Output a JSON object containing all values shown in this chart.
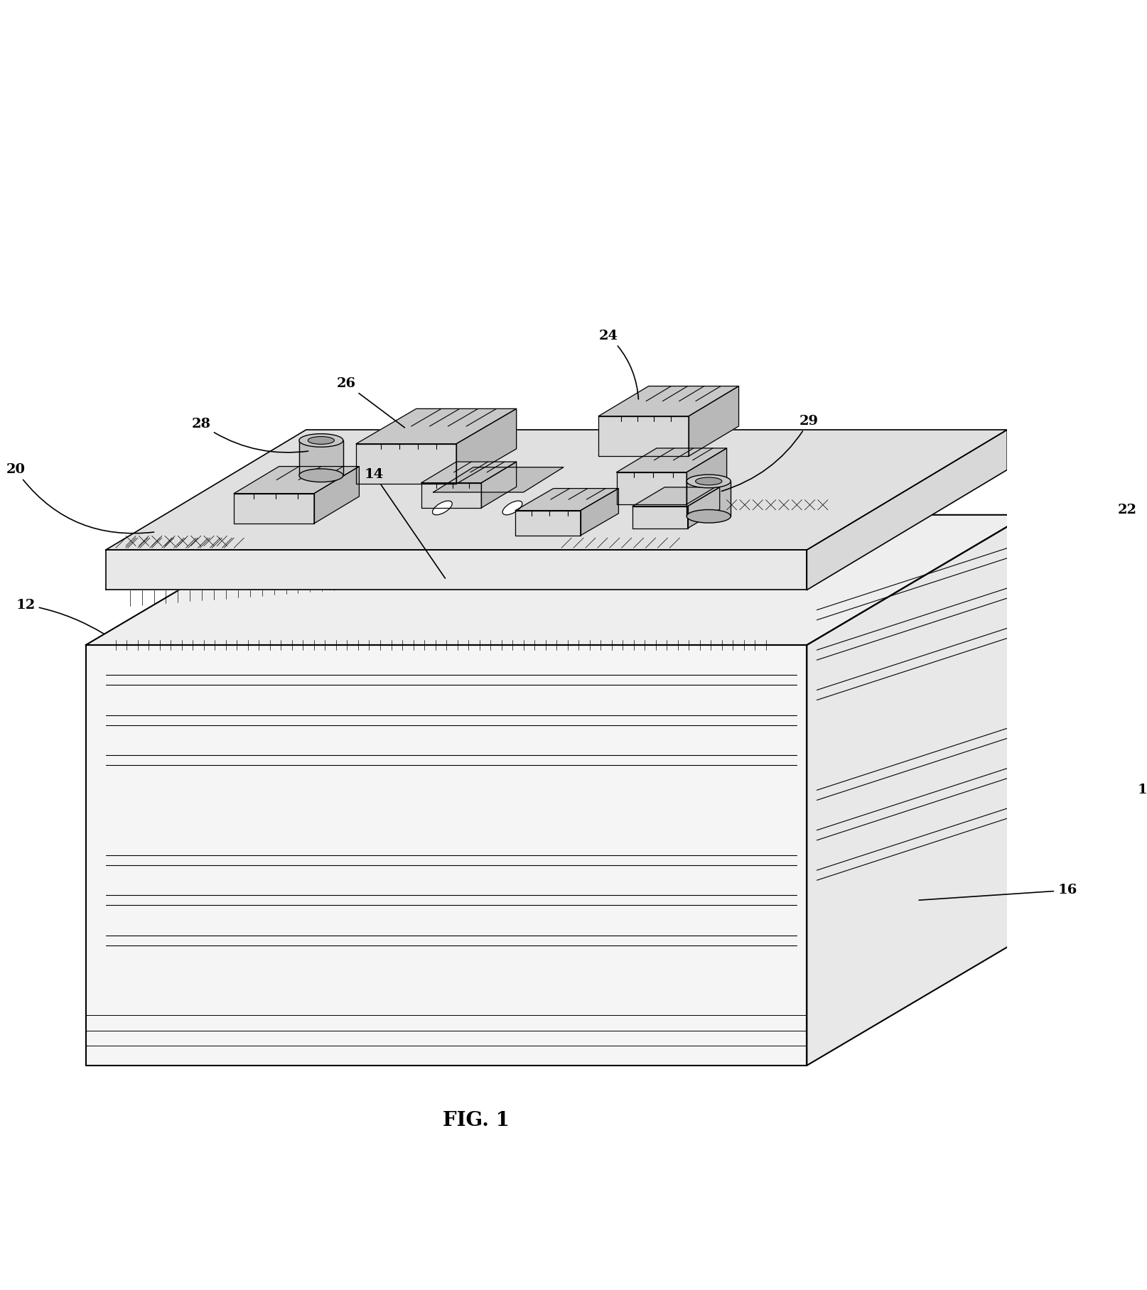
{
  "background_color": "#ffffff",
  "line_color": "#000000",
  "fig_width": 16.14,
  "fig_height": 18.16,
  "fig_label": "FIG. 1"
}
